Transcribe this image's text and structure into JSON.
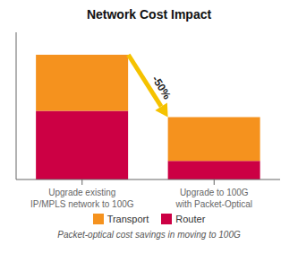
{
  "chart_data": {
    "type": "bar",
    "title": "Network Cost Impact",
    "subtitle": "Packet-optical cost savings in moving to 100G",
    "categories": [
      "Upgrade existing\nIP/MPLS network to 100G",
      "Upgrade to 100G\nwith Packet-Optical"
    ],
    "series": [
      {
        "name": "Transport",
        "color": "#F5921E",
        "values": [
          45,
          35
        ]
      },
      {
        "name": "Router",
        "color": "#CC0044",
        "values": [
          55,
          15
        ]
      }
    ],
    "stacked": true,
    "ylim": [
      0,
      118
    ],
    "yticks": [],
    "tick_labels": "x",
    "grid": false,
    "legend": "bottom",
    "annotations": [
      {
        "text": "-50%",
        "color": "#F5C200"
      }
    ]
  }
}
